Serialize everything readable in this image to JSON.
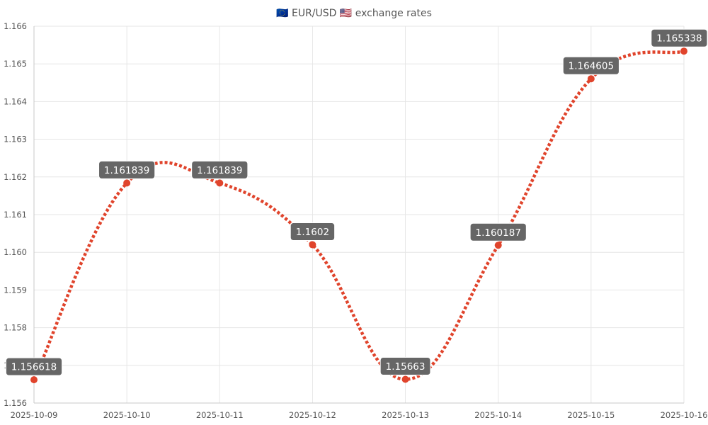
{
  "chart_data": {
    "type": "line",
    "title": "🇪🇺 EUR/USD 🇺🇸 exchange rates",
    "xlabel": "",
    "ylabel": "",
    "categories": [
      "2025-10-09",
      "2025-10-10",
      "2025-10-11",
      "2025-10-12",
      "2025-10-13",
      "2025-10-14",
      "2025-10-15",
      "2025-10-16"
    ],
    "series": [
      {
        "values": [
          1.156618,
          1.161839,
          1.161839,
          1.1602,
          1.15663,
          1.160187,
          1.164605,
          1.165338
        ],
        "labels": [
          "1.156618",
          "1.161839",
          "1.161839",
          "1.1602",
          "1.15663",
          "1.160187",
          "1.164605",
          "1.165338"
        ],
        "color": "#e0442c",
        "line_style": "dotted",
        "smoothed": true
      }
    ],
    "ylim": [
      1.156,
      1.166
    ],
    "yticks": [
      "1.156",
      "1.157",
      "1.158",
      "1.159",
      "1.160",
      "1.161",
      "1.162",
      "1.163",
      "1.164",
      "1.165",
      "1.166"
    ],
    "grid": true,
    "legend": "none",
    "label_color": "#666666"
  }
}
